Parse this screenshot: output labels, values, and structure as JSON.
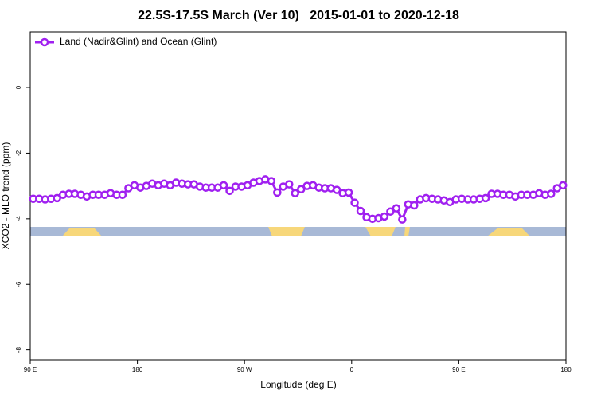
{
  "chart_data": {
    "type": "line",
    "title": "22.5S-17.5S March (Ver 10)   2015-01-01 to 2020-12-18",
    "x_label": "Longitude (deg E)",
    "y_label": "XCO2 - MLO trend (ppm)",
    "x": [
      92.5,
      97.5,
      102.5,
      107.5,
      112.5,
      117.5,
      122.5,
      127.5,
      132.5,
      137.5,
      142.5,
      147.5,
      152.5,
      157.5,
      162.5,
      167.5,
      172.5,
      177.5,
      182.5,
      187.5,
      192.5,
      197.5,
      202.5,
      207.5,
      212.5,
      217.5,
      222.5,
      227.5,
      232.5,
      237.5,
      242.5,
      247.5,
      252.5,
      257.5,
      262.5,
      267.5,
      272.5,
      277.5,
      282.5,
      287.5,
      292.5,
      297.5,
      302.5,
      307.5,
      312.5,
      317.5,
      322.5,
      327.5,
      332.5,
      337.5,
      342.5,
      347.5,
      352.5,
      357.5,
      362.5,
      367.5,
      372.5,
      377.5,
      382.5,
      387.5,
      392.5,
      397.5,
      402.5,
      407.5,
      412.5,
      417.5,
      422.5,
      427.5,
      432.5,
      437.5,
      442.5,
      447.5,
      452.5,
      457.5,
      462.5,
      467.5,
      472.5,
      477.5,
      482.5,
      487.5,
      492.5,
      497.5,
      502.5,
      507.5,
      512.5,
      517.5,
      522.5,
      527.5,
      532.5,
      537.5
    ],
    "series": [
      {
        "name": "Land (Nadir&Glint) and Ocean (Glint)",
        "color": "#a020f0",
        "values": [
          -3.39,
          -3.39,
          -3.41,
          -3.39,
          -3.37,
          -3.27,
          -3.24,
          -3.24,
          -3.27,
          -3.32,
          -3.27,
          -3.27,
          -3.27,
          -3.22,
          -3.27,
          -3.27,
          -3.07,
          -2.98,
          -3.05,
          -3.0,
          -2.93,
          -2.98,
          -2.93,
          -2.98,
          -2.9,
          -2.93,
          -2.95,
          -2.95,
          -3.02,
          -3.05,
          -3.05,
          -3.05,
          -2.98,
          -3.15,
          -3.02,
          -3.02,
          -2.98,
          -2.9,
          -2.85,
          -2.8,
          -2.85,
          -3.2,
          -3.02,
          -2.95,
          -3.22,
          -3.1,
          -3.0,
          -2.98,
          -3.05,
          -3.07,
          -3.07,
          -3.12,
          -3.22,
          -3.2,
          -3.51,
          -3.76,
          -3.95,
          -4.0,
          -3.98,
          -3.93,
          -3.78,
          -3.68,
          -4.02,
          -3.56,
          -3.59,
          -3.41,
          -3.37,
          -3.39,
          -3.41,
          -3.44,
          -3.49,
          -3.41,
          -3.39,
          -3.41,
          -3.41,
          -3.39,
          -3.37,
          -3.24,
          -3.24,
          -3.27,
          -3.27,
          -3.32,
          -3.27,
          -3.27,
          -3.27,
          -3.22,
          -3.27,
          -3.24,
          -3.07,
          -2.98
        ]
      }
    ],
    "xlim": [
      90,
      540
    ],
    "xticks": [
      {
        "value": 90,
        "label": "90 E"
      },
      180,
      {
        "value": 270,
        "label": "90 W"
      },
      {
        "value": 360,
        "label": "0"
      },
      {
        "value": 450,
        "label": "90 E"
      },
      {
        "value": 540,
        "label": "180"
      }
    ],
    "ylim": [
      -8.3,
      1.7
    ],
    "yticks": [
      0,
      -2,
      -4,
      -6,
      -8
    ],
    "legend": "top-left"
  }
}
